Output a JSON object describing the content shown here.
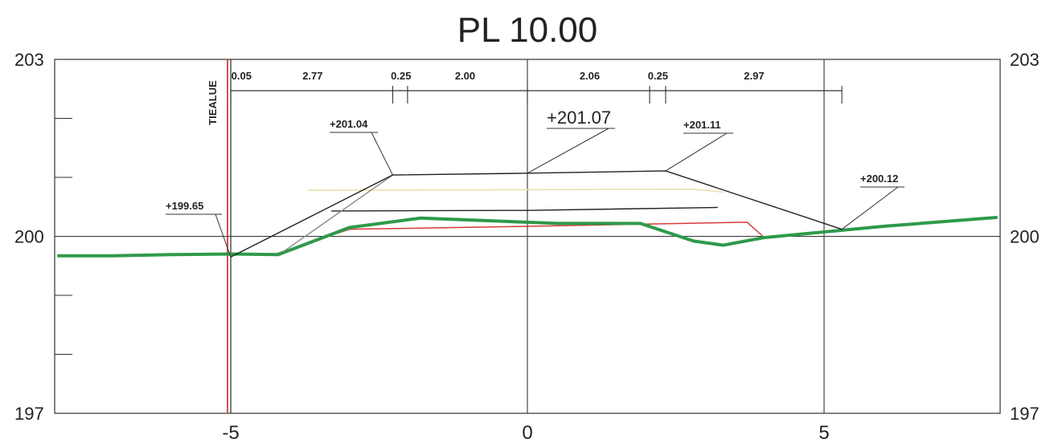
{
  "title": "PL 10.00",
  "axes": {
    "y_left": [
      "203",
      "200",
      "197"
    ],
    "y_right": [
      "203",
      "200",
      "197"
    ],
    "x": [
      "-5",
      "0",
      "5"
    ]
  },
  "boundary_label": "TIEALUE",
  "dimensions": [
    "0.05",
    "2.77",
    "0.25",
    "2.00",
    "2.06",
    "0.25",
    "2.97"
  ],
  "elevation_labels": {
    "left_toe": "+199.65",
    "left_shoulder": "+201.04",
    "centerline": "+201.07",
    "right_shoulder": "+201.11",
    "right_toe": "+200.12"
  },
  "colors": {
    "ground": "#2e9a4a",
    "boundary": "#d43a3a",
    "structure": "#222222",
    "layer_red": "#d43a3a",
    "layer_gray": "#8a8a8a",
    "layer_yellow": "#e8e0b0"
  },
  "chart_data": {
    "type": "cross-section",
    "title": "PL 10.00",
    "xlim": [
      -7.9,
      7.9
    ],
    "ylim": [
      197,
      203
    ],
    "x_ticks": [
      -5,
      0,
      5
    ],
    "y_ticks": [
      197,
      200,
      203
    ],
    "boundary_x": -5,
    "ground_line": [
      [
        -7.9,
        199.67
      ],
      [
        -7.0,
        199.67
      ],
      [
        -6.0,
        199.69
      ],
      [
        -5.0,
        199.7
      ],
      [
        -4.2,
        199.69
      ],
      [
        -3.0,
        200.15
      ],
      [
        -1.8,
        200.31
      ],
      [
        0.5,
        200.22
      ],
      [
        1.9,
        200.22
      ],
      [
        2.8,
        199.92
      ],
      [
        3.3,
        199.85
      ],
      [
        4.0,
        199.98
      ],
      [
        6.0,
        200.17
      ],
      [
        7.9,
        200.32
      ]
    ],
    "structure_surface": [
      [
        -5.0,
        199.65
      ],
      [
        -2.27,
        201.04
      ],
      [
        0.0,
        201.07
      ],
      [
        2.33,
        201.11
      ],
      [
        5.3,
        200.12
      ]
    ]
  }
}
